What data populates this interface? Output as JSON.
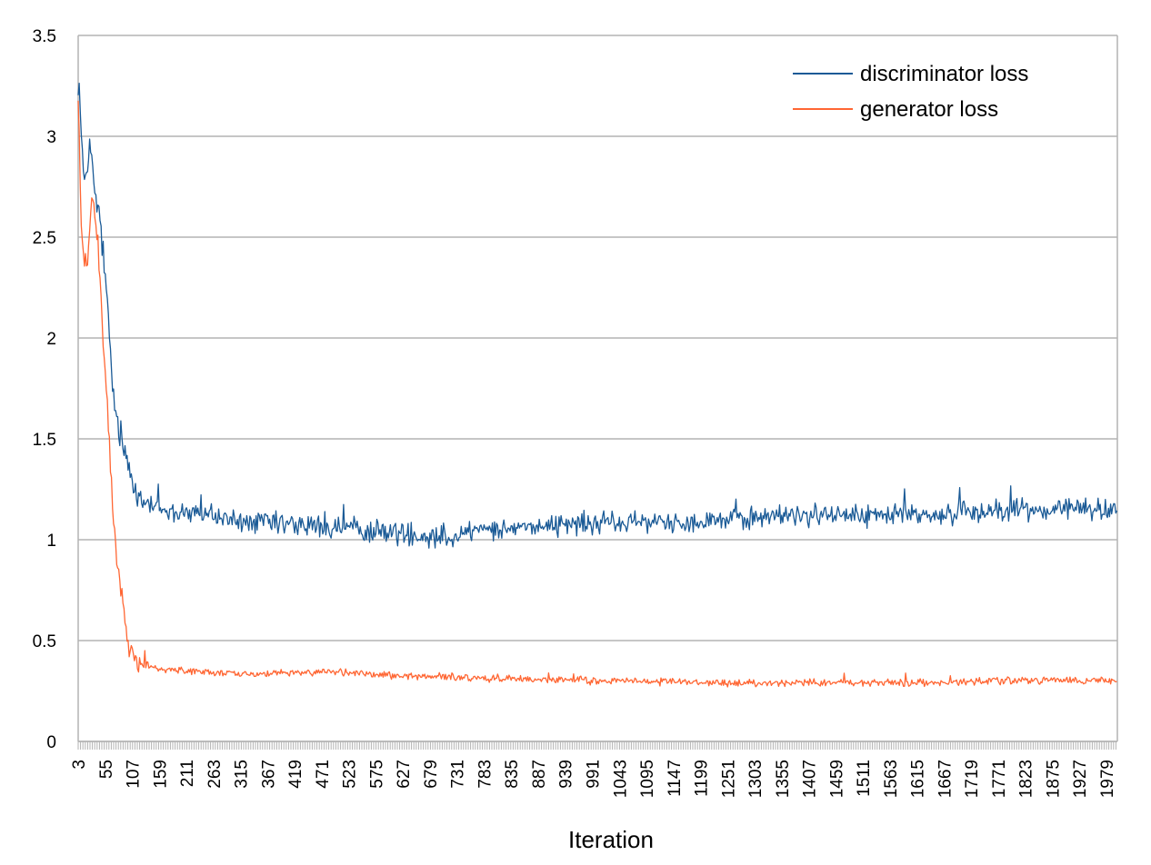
{
  "chart_data": {
    "type": "line",
    "title": "",
    "xlabel": "Iteration",
    "ylabel": "",
    "ylim": [
      0,
      3.5
    ],
    "xlim": [
      3,
      2000
    ],
    "y_ticks": [
      "0",
      "0.5",
      "1",
      "1.5",
      "2",
      "2.5",
      "3",
      "3.5"
    ],
    "x_tick_labels": [
      "3",
      "55",
      "107",
      "159",
      "211",
      "263",
      "315",
      "367",
      "419",
      "471",
      "523",
      "575",
      "627",
      "679",
      "731",
      "783",
      "835",
      "887",
      "939",
      "991",
      "1043",
      "1095",
      "1147",
      "1199",
      "1251",
      "1303",
      "1355",
      "1407",
      "1459",
      "1511",
      "1563",
      "1615",
      "1667",
      "1719",
      "1771",
      "1823",
      "1875",
      "1927",
      "1979"
    ],
    "grid": "horizontal",
    "legend_position": "top-right",
    "series": [
      {
        "name": "discriminator loss",
        "color": "#1a5a96",
        "x": [
          3,
          15,
          25,
          35,
          45,
          55,
          65,
          75,
          90,
          107,
          125,
          159,
          211,
          263,
          315,
          367,
          419,
          471,
          523,
          575,
          627,
          679,
          731,
          783,
          835,
          887,
          939,
          991,
          1043,
          1095,
          1147,
          1199,
          1251,
          1303,
          1355,
          1407,
          1459,
          1511,
          1563,
          1615,
          1667,
          1719,
          1771,
          1823,
          1875,
          1927,
          1979,
          2000
        ],
        "values": [
          3.3,
          2.75,
          3.0,
          2.7,
          2.6,
          2.3,
          1.9,
          1.6,
          1.45,
          1.3,
          1.2,
          1.15,
          1.13,
          1.11,
          1.09,
          1.08,
          1.07,
          1.06,
          1.05,
          1.04,
          1.03,
          1.02,
          1.03,
          1.05,
          1.06,
          1.07,
          1.07,
          1.08,
          1.08,
          1.09,
          1.09,
          1.1,
          1.1,
          1.11,
          1.12,
          1.12,
          1.12,
          1.12,
          1.12,
          1.13,
          1.13,
          1.14,
          1.14,
          1.15,
          1.15,
          1.15,
          1.15,
          1.14
        ]
      },
      {
        "name": "generator loss",
        "color": "#ff6633",
        "x": [
          3,
          10,
          20,
          30,
          40,
          50,
          60,
          70,
          80,
          90,
          100,
          110,
          125,
          159,
          211,
          263,
          315,
          367,
          419,
          471,
          523,
          575,
          627,
          679,
          731,
          783,
          835,
          887,
          939,
          991,
          1043,
          1095,
          1147,
          1199,
          1251,
          1303,
          1355,
          1407,
          1459,
          1511,
          1563,
          1615,
          1667,
          1719,
          1771,
          1823,
          1875,
          1927,
          1979,
          2000
        ],
        "values": [
          3.2,
          2.45,
          2.35,
          2.7,
          2.5,
          2.05,
          1.6,
          1.15,
          0.85,
          0.65,
          0.5,
          0.44,
          0.39,
          0.36,
          0.35,
          0.34,
          0.335,
          0.335,
          0.34,
          0.345,
          0.34,
          0.33,
          0.325,
          0.32,
          0.32,
          0.315,
          0.31,
          0.305,
          0.305,
          0.3,
          0.3,
          0.295,
          0.295,
          0.295,
          0.29,
          0.29,
          0.29,
          0.29,
          0.29,
          0.29,
          0.29,
          0.29,
          0.29,
          0.295,
          0.3,
          0.3,
          0.3,
          0.3,
          0.3,
          0.3
        ]
      }
    ]
  }
}
